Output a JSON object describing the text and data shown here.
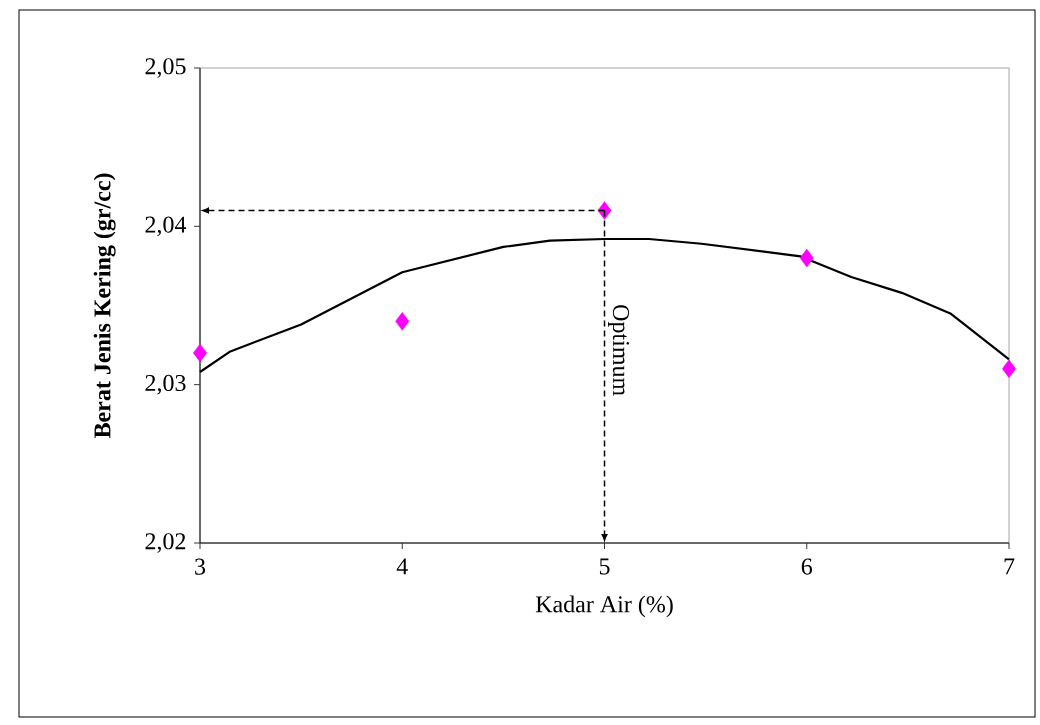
{
  "chart_data": {
    "type": "scatter",
    "xlabel": "Kadar Air (%)",
    "ylabel": "Berat Jenis Kering (gr/cc)",
    "xlim": [
      3,
      7
    ],
    "ylim": [
      2.02,
      2.05
    ],
    "xticks": [
      3,
      4,
      5,
      6,
      7
    ],
    "yticks": [
      {
        "value": 2.02,
        "label": "2,02"
      },
      {
        "value": 2.03,
        "label": "2,03"
      },
      {
        "value": 2.04,
        "label": "2,04"
      },
      {
        "value": 2.05,
        "label": "2,05"
      }
    ],
    "series": [
      {
        "color": "#ff00ff",
        "marker": "diamond",
        "x": [
          3,
          4,
          5,
          6,
          7
        ],
        "values": [
          2.032,
          2.034,
          2.041,
          2.038,
          2.031
        ]
      },
      {
        "type": "line",
        "color": "#000000",
        "marker": "none",
        "line_style": "solid",
        "x": [
          3,
          3.15,
          3.5,
          4,
          4.5,
          4.73,
          5,
          5.22,
          5.48,
          5.97,
          6.22,
          6.47,
          6.71,
          7
        ],
        "values": [
          2.0308,
          2.0321,
          2.0338,
          2.0371,
          2.0387,
          2.0391,
          2.0392,
          2.0392,
          2.0389,
          2.0381,
          2.0368,
          2.0358,
          2.0345,
          2.0316
        ]
      }
    ],
    "ref_lines": [
      {
        "axis": "x",
        "value": 5,
        "label": "Optimum",
        "line_style": "dashed"
      },
      {
        "axis": "y",
        "value": 2.041,
        "line_style": "dashed"
      }
    ],
    "grid": false
  }
}
